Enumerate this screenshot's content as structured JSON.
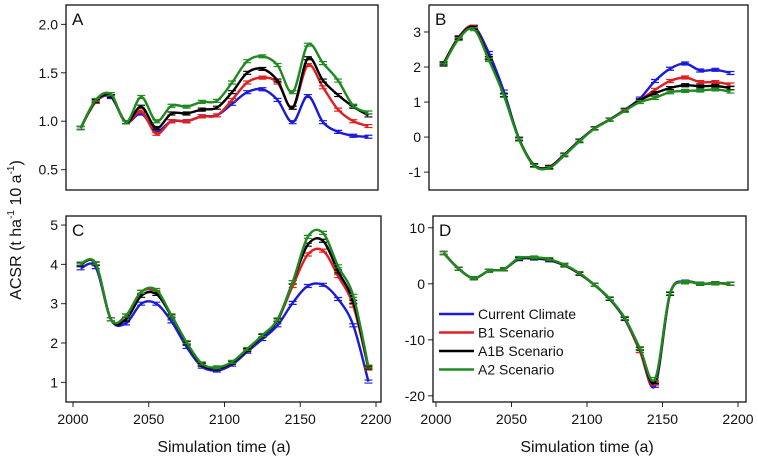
{
  "chart_data": {
    "type": "line",
    "ylabel": "ACSR (t ha-1 10 a-1)",
    "ylabel_parts": {
      "main": "ACSR (t ha",
      "sup1": "-1",
      "mid": " 10 a",
      "sup2": "-1",
      "end": ")"
    },
    "xlabel": "Simulation time (a)",
    "xlim": [
      2000,
      2200
    ],
    "xticks": [
      "2000",
      "2050",
      "2100",
      "2150",
      "2200"
    ],
    "x": [
      2005,
      2015,
      2025,
      2035,
      2045,
      2055,
      2065,
      2075,
      2085,
      2095,
      2105,
      2115,
      2125,
      2135,
      2145,
      2155,
      2165,
      2175,
      2185,
      2195
    ],
    "legend": {
      "placement": "center-left of panel D",
      "entries": [
        {
          "name": "Current Climate",
          "color": "#1a1adb"
        },
        {
          "name": "B1 Scenario",
          "color": "#e02020"
        },
        {
          "name": "A1B Scenario",
          "color": "#000000"
        },
        {
          "name": "A2 Scenario",
          "color": "#1f8a1f"
        }
      ]
    },
    "panels": [
      {
        "label": "A",
        "ylim": [
          0.29,
          2.2
        ],
        "yticks": [
          "0.5",
          "1.0",
          "1.5",
          "2.0"
        ],
        "series": [
          {
            "name": "Current Climate",
            "values": [
              0.93,
              1.2,
              1.25,
              0.99,
              1.08,
              0.9,
              1.0,
              1.0,
              1.05,
              1.06,
              1.18,
              1.3,
              1.33,
              1.22,
              0.99,
              1.26,
              0.99,
              0.89,
              0.85,
              0.84
            ]
          },
          {
            "name": "B1 Scenario",
            "values": [
              0.93,
              1.2,
              1.26,
              0.99,
              1.1,
              0.87,
              1.0,
              1.0,
              1.05,
              1.06,
              1.22,
              1.4,
              1.45,
              1.4,
              1.14,
              1.58,
              1.35,
              1.12,
              1.0,
              0.95
            ]
          },
          {
            "name": "A1B Scenario",
            "values": [
              0.93,
              1.21,
              1.26,
              0.99,
              1.15,
              0.93,
              1.08,
              1.08,
              1.12,
              1.14,
              1.3,
              1.5,
              1.54,
              1.42,
              1.14,
              1.65,
              1.42,
              1.27,
              1.15,
              1.06
            ]
          },
          {
            "name": "A2 Scenario",
            "values": [
              0.93,
              1.22,
              1.28,
              0.99,
              1.25,
              1.0,
              1.16,
              1.15,
              1.2,
              1.21,
              1.4,
              1.62,
              1.67,
              1.58,
              1.3,
              1.79,
              1.6,
              1.42,
              1.16,
              1.09
            ]
          }
        ]
      },
      {
        "label": "B",
        "ylim": [
          -1.51,
          3.77
        ],
        "yticks": [
          "-1",
          "0",
          "1",
          "2",
          "3"
        ],
        "series": [
          {
            "name": "Current Climate",
            "values": [
              2.1,
              2.85,
              3.15,
              2.4,
              1.3,
              -0.05,
              -0.8,
              -0.85,
              -0.5,
              -0.1,
              0.25,
              0.5,
              0.78,
              1.1,
              1.6,
              1.95,
              2.1,
              1.9,
              1.92,
              1.83
            ]
          },
          {
            "name": "B1 Scenario",
            "values": [
              2.1,
              2.85,
              3.15,
              2.25,
              1.2,
              -0.05,
              -0.8,
              -0.85,
              -0.5,
              -0.1,
              0.25,
              0.5,
              0.77,
              1.05,
              1.35,
              1.6,
              1.7,
              1.57,
              1.57,
              1.5
            ]
          },
          {
            "name": "A1B Scenario",
            "values": [
              2.1,
              2.83,
              3.12,
              2.25,
              1.2,
              -0.05,
              -0.8,
              -0.86,
              -0.5,
              -0.1,
              0.25,
              0.5,
              0.76,
              1.05,
              1.25,
              1.4,
              1.48,
              1.45,
              1.46,
              1.4
            ]
          },
          {
            "name": "A2 Scenario",
            "values": [
              2.06,
              2.8,
              3.08,
              2.2,
              1.18,
              -0.07,
              -0.82,
              -0.88,
              -0.52,
              -0.12,
              0.24,
              0.49,
              0.75,
              1.0,
              1.12,
              1.28,
              1.32,
              1.33,
              1.36,
              1.3
            ]
          }
        ]
      },
      {
        "label": "C",
        "ylim": [
          0.5,
          5.23
        ],
        "yticks": [
          "1",
          "2",
          "3",
          "4",
          "5"
        ],
        "series": [
          {
            "name": "Current Climate",
            "values": [
              3.9,
              3.93,
              2.6,
              2.5,
              3.0,
              3.0,
              2.55,
              1.9,
              1.4,
              1.3,
              1.45,
              1.78,
              2.1,
              2.45,
              3.02,
              3.45,
              3.48,
              3.12,
              2.45,
              1.02
            ]
          },
          {
            "name": "B1 Scenario",
            "values": [
              4.0,
              4.02,
              2.6,
              2.7,
              3.3,
              3.3,
              2.7,
              2.0,
              1.45,
              1.35,
              1.5,
              1.82,
              2.18,
              2.58,
              3.45,
              4.25,
              4.35,
              3.7,
              2.95,
              1.35
            ]
          },
          {
            "name": "A1B Scenario",
            "values": [
              4.0,
              4.02,
              2.6,
              2.6,
              3.2,
              3.25,
              2.68,
              2.0,
              1.45,
              1.35,
              1.5,
              1.82,
              2.18,
              2.58,
              3.55,
              4.5,
              4.6,
              3.82,
              3.05,
              1.38
            ]
          },
          {
            "name": "A2 Scenario",
            "values": [
              4.02,
              4.03,
              2.6,
              2.7,
              3.3,
              3.35,
              2.7,
              2.02,
              1.48,
              1.38,
              1.52,
              1.85,
              2.2,
              2.6,
              3.55,
              4.7,
              4.8,
              3.95,
              3.2,
              1.4
            ]
          }
        ]
      },
      {
        "label": "D",
        "ylim": [
          -21.1,
          12.1
        ],
        "yticks": [
          "-20",
          "-10",
          "0",
          "10"
        ],
        "series": [
          {
            "name": "Current Climate",
            "values": [
              5.5,
              2.7,
              1.0,
              2.3,
              2.6,
              4.4,
              4.5,
              4.2,
              3.3,
              1.8,
              -0.2,
              -2.7,
              -6.3,
              -12.0,
              -18.2,
              -1.8,
              0.4,
              0.0,
              0.1,
              0.0
            ]
          },
          {
            "name": "B1 Scenario",
            "values": [
              5.5,
              2.7,
              1.0,
              2.3,
              2.6,
              4.5,
              4.6,
              4.3,
              3.3,
              1.8,
              -0.2,
              -2.7,
              -6.2,
              -12.0,
              -17.8,
              -1.8,
              0.3,
              0.0,
              0.1,
              0.0
            ]
          },
          {
            "name": "A1B Scenario",
            "values": [
              5.5,
              2.7,
              1.0,
              2.3,
              2.6,
              4.5,
              4.6,
              4.3,
              3.3,
              1.8,
              -0.2,
              -2.7,
              -6.2,
              -11.6,
              -17.5,
              -1.8,
              0.3,
              0.0,
              0.1,
              0.0
            ]
          },
          {
            "name": "A2 Scenario",
            "values": [
              5.5,
              2.7,
              1.0,
              2.3,
              2.6,
              4.6,
              4.7,
              4.4,
              3.4,
              1.9,
              -0.2,
              -2.6,
              -6.1,
              -11.5,
              -17.0,
              -1.7,
              0.3,
              0.0,
              0.1,
              0.0
            ]
          }
        ]
      }
    ]
  }
}
